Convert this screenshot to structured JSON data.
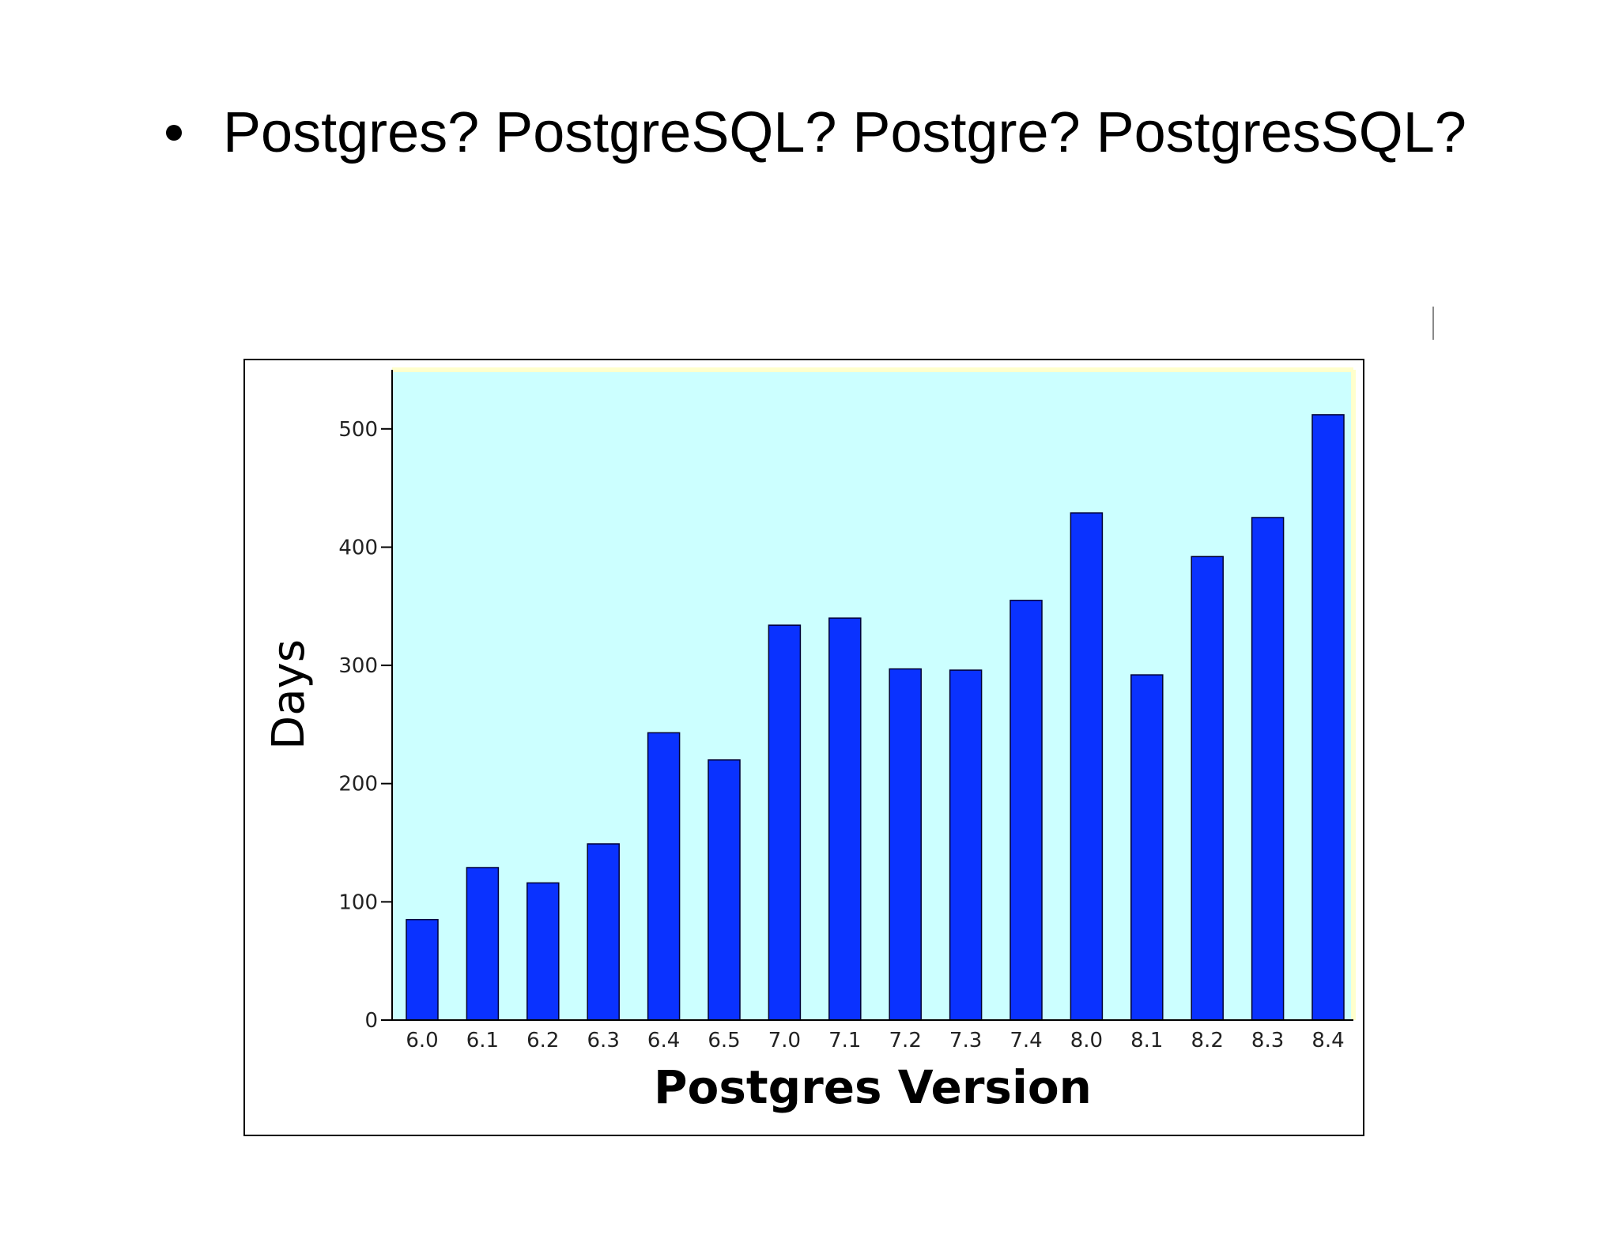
{
  "slide": {
    "bullet_text": "Postgres? PostgreSQL? Postgre? PostgresSQL?"
  },
  "colors": {
    "plot_background": "#ccffff",
    "bar_fill": "#0a32ff",
    "bar_stroke": "#000033",
    "frame": "#000000",
    "plot_top_edge": "#ffffcc"
  },
  "chart_data": {
    "type": "bar",
    "title": "",
    "xlabel": "Postgres Version",
    "ylabel": "Days",
    "categories": [
      "6.0",
      "6.1",
      "6.2",
      "6.3",
      "6.4",
      "6.5",
      "7.0",
      "7.1",
      "7.2",
      "7.3",
      "7.4",
      "8.0",
      "8.1",
      "8.2",
      "8.3",
      "8.4"
    ],
    "values": [
      85,
      129,
      116,
      149,
      243,
      220,
      334,
      340,
      297,
      296,
      355,
      429,
      292,
      392,
      425,
      512
    ],
    "y_ticks": [
      0,
      100,
      200,
      300,
      400,
      500
    ],
    "ylim": [
      0,
      550
    ],
    "grid": false,
    "legend": "none"
  }
}
